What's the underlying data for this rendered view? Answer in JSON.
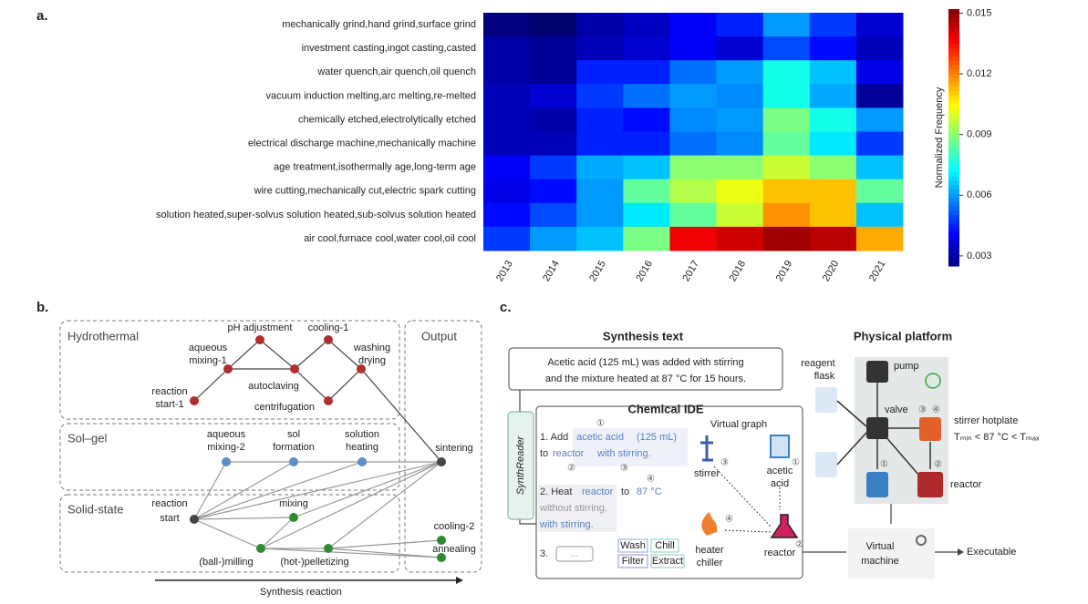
{
  "chart_data": {
    "type": "heatmap",
    "label": "a.",
    "rows": [
      "mechanically grind,hand grind,surface grind",
      "investment casting,ingot casting,casted",
      "water quench,air quench,oil quench",
      "vacuum induction melting,arc melting,re-melted",
      "chemically etched,electrolytically etched",
      "electrical discharge machine,mechanically machine",
      "age treatment,isothermally age,long-term age",
      "wire cutting,mechanically cut,electric spark cutting",
      "solution heated,super-solvus solution heated,sub-solvus solution heated",
      "air cool,furnace cool,water cool,oil cool"
    ],
    "columns": [
      "2013",
      "2014",
      "2015",
      "2016",
      "2017",
      "2018",
      "2019",
      "2020",
      "2021"
    ],
    "values": [
      [
        0.0025,
        0.0023,
        0.003,
        0.0033,
        0.004,
        0.0045,
        0.006,
        0.0048,
        0.0035
      ],
      [
        0.003,
        0.0028,
        0.0032,
        0.0035,
        0.004,
        0.0035,
        0.005,
        0.0042,
        0.0032
      ],
      [
        0.003,
        0.0028,
        0.0045,
        0.0045,
        0.0055,
        0.006,
        0.0075,
        0.0065,
        0.0038
      ],
      [
        0.0032,
        0.0035,
        0.0048,
        0.0055,
        0.006,
        0.0058,
        0.0075,
        0.0062,
        0.0028
      ],
      [
        0.0032,
        0.003,
        0.0045,
        0.0042,
        0.0058,
        0.006,
        0.0088,
        0.0075,
        0.006
      ],
      [
        0.0032,
        0.0032,
        0.0045,
        0.0045,
        0.0055,
        0.0058,
        0.0085,
        0.007,
        0.0048
      ],
      [
        0.004,
        0.0048,
        0.0062,
        0.0065,
        0.009,
        0.009,
        0.0098,
        0.009,
        0.0065
      ],
      [
        0.0038,
        0.0042,
        0.006,
        0.0085,
        0.0095,
        0.0102,
        0.0112,
        0.0112,
        0.0085
      ],
      [
        0.0042,
        0.005,
        0.006,
        0.007,
        0.0085,
        0.0098,
        0.0118,
        0.0112,
        0.0065
      ],
      [
        0.0048,
        0.006,
        0.0065,
        0.0088,
        0.0138,
        0.0142,
        0.0148,
        0.0145,
        0.0115
      ]
    ],
    "colorbar_label": "Normalized Frequency",
    "zlim": [
      0.0025,
      0.0152
    ],
    "zticks": [
      0.003,
      0.006,
      0.009,
      0.012,
      0.015
    ],
    "colormap": "jet"
  },
  "panel_b": {
    "label": "b.",
    "groups": [
      "Hydrothermal",
      "Sol–gel",
      "Solid-state",
      "Output"
    ],
    "nodes": [
      "pH adjustment",
      "cooling-1",
      "aqueous",
      "mixing-1",
      "washing",
      "drying",
      "autoclaving",
      "reaction",
      "start-1",
      "centrifugation",
      "aqueous",
      "mixing-2",
      "sol",
      "formation",
      "solution",
      "heating",
      "sintering",
      "reaction",
      "start",
      "mixing",
      "(ball-)milling",
      "(hot-)pelletizing",
      "cooling-2",
      "annealing"
    ],
    "axis_label": "Synthesis reaction"
  },
  "panel_c": {
    "label": "c.",
    "headings": [
      "Synthesis text",
      "Physical platform"
    ],
    "text": [
      "Acetic acid (125 mL) was added with stirring",
      "and the mixture heated at 87 °C for 15 hours."
    ],
    "reader": "SynthReader",
    "ide": "Chemical IDE",
    "graph_title": "Virtual graph",
    "code": [
      "1. Add",
      "acetic acid",
      "(125 mL)",
      "to",
      "reactor",
      "with stirring.",
      "2. Heat",
      "reactor",
      "to",
      "87 °C",
      "without stirring.",
      "with stirring.",
      "3.",
      "..."
    ],
    "ops": [
      "Wash",
      "Chill",
      "Filter",
      "Extract"
    ],
    "markers": [
      "①",
      "②",
      "③",
      "④"
    ],
    "graph": [
      "stirrer",
      "acetic",
      "acid",
      "heater",
      "chiller",
      "reactor"
    ],
    "vm": [
      "Virtual",
      "machine"
    ],
    "output": "Executable",
    "platform": [
      "reagent",
      "flask",
      "pump",
      "valve",
      "stirrer hotplate",
      "Tₘᵢₙ < 87 °C < Tₘₐₓ",
      "reactor"
    ]
  }
}
